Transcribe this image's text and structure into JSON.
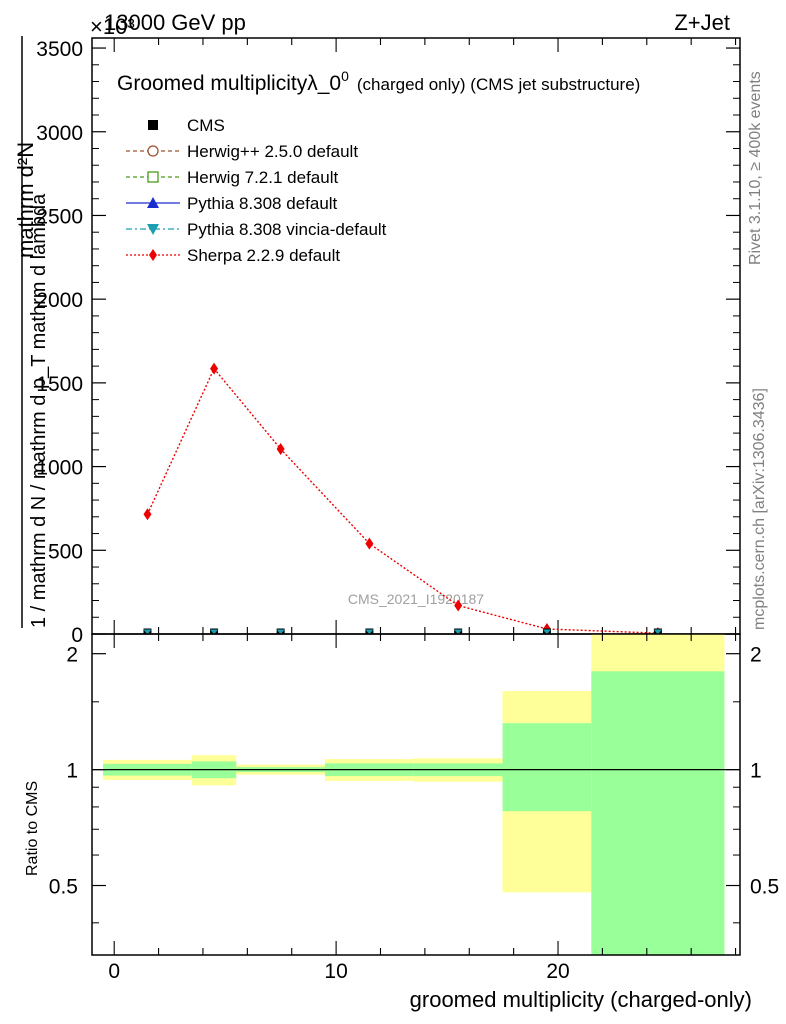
{
  "header": {
    "left": "13000 GeV pp",
    "right": "Z+Jet",
    "exponent": "×10³"
  },
  "side_labels": {
    "rivet": "Rivet 3.1.10, ≥ 400k events",
    "mcplots": "mcplots.cern.ch [arXiv:1306.3436]"
  },
  "chart_data": [
    {
      "type": "line",
      "title": "Groomed multiplicityλ_0",
      "title_sup": "0",
      "title_suffix": "(charged only) (CMS jet substructure)",
      "ylabel_top": "mathrm d²N",
      "ylabel_bottom": "mathrm d p_T mathrm d lambda",
      "ylabel_full": "1 / mathrm d N / mathrm d p_T mathrm d lambda",
      "watermark": "CMS_2021_I1920187",
      "xlim": [
        -1,
        28.2
      ],
      "ylim": [
        0,
        3.56
      ],
      "y_ticks": [
        0,
        500,
        1000,
        1500,
        2000,
        2500,
        3000,
        3500
      ],
      "y_tick_labels": [
        "0",
        "500",
        "1000",
        "1500",
        "2000",
        "2500",
        "3000",
        "3500"
      ],
      "legend_position": "top-left",
      "legend": [
        {
          "label": "CMS",
          "color": "#000000",
          "marker": "square-filled",
          "line": "none"
        },
        {
          "label": "Herwig++ 2.5.0 default",
          "color": "#a0522d",
          "marker": "circle-open",
          "line": "dashed"
        },
        {
          "label": "Herwig 7.2.1 default",
          "color": "#4a9a1a",
          "marker": "square-open",
          "line": "dashed"
        },
        {
          "label": "Pythia 8.308 default",
          "color": "#1a2ecf",
          "marker": "triangle-up",
          "line": "solid"
        },
        {
          "label": "Pythia 8.308 vincia-default",
          "color": "#1a9fb0",
          "marker": "triangle-down",
          "line": "dashdot"
        },
        {
          "label": "Sherpa 2.2.9 default",
          "color": "#ee0000",
          "marker": "diamond",
          "line": "dotted"
        }
      ],
      "x": [
        1.5,
        4.5,
        7.5,
        11.5,
        15.5,
        19.5,
        24.5
      ],
      "series": [
        {
          "name": "Sherpa 2.2.9 default",
          "color": "#ee0000",
          "values": [
            0.715,
            1.585,
            1.105,
            0.54,
            0.17,
            0.03,
            0.005
          ]
        },
        {
          "name": "CMS",
          "color": "#000000",
          "values": [
            0.003,
            0.003,
            0.003,
            0.003,
            0.003,
            0.003,
            0.003
          ]
        }
      ]
    },
    {
      "type": "area",
      "ylabel": "Ratio to CMS",
      "xlabel": "groomed multiplicity (charged-only)",
      "xlim": [
        -1,
        28.2
      ],
      "ylim": [
        0.33,
        2.25
      ],
      "x_ticks": [
        0,
        10,
        20
      ],
      "x_tick_labels": [
        "0",
        "10",
        "20"
      ],
      "y_ticks": [
        0.5,
        1,
        2
      ],
      "y_tick_labels": [
        "0.5",
        "1",
        "2"
      ],
      "reference": 1,
      "bins": [
        {
          "lo": -0.5,
          "hi": 3.5,
          "yellow": [
            0.94,
            1.06
          ],
          "green": [
            0.965,
            1.035
          ]
        },
        {
          "lo": 3.5,
          "hi": 5.5,
          "yellow": [
            0.91,
            1.09
          ],
          "green": [
            0.95,
            1.05
          ]
        },
        {
          "lo": 5.5,
          "hi": 9.5,
          "yellow": [
            0.97,
            1.03
          ],
          "green": [
            0.985,
            1.015
          ]
        },
        {
          "lo": 9.5,
          "hi": 13.5,
          "yellow": [
            0.935,
            1.065
          ],
          "green": [
            0.962,
            1.038
          ]
        },
        {
          "lo": 13.5,
          "hi": 17.5,
          "yellow": [
            0.93,
            1.07
          ],
          "green": [
            0.962,
            1.038
          ]
        },
        {
          "lo": 17.5,
          "hi": 21.5,
          "yellow": [
            0.48,
            1.6
          ],
          "green": [
            0.78,
            1.32
          ]
        },
        {
          "lo": 21.5,
          "hi": 27.5,
          "yellow": [
            0.33,
            2.25
          ],
          "green": [
            0.33,
            1.8
          ]
        }
      ]
    }
  ]
}
